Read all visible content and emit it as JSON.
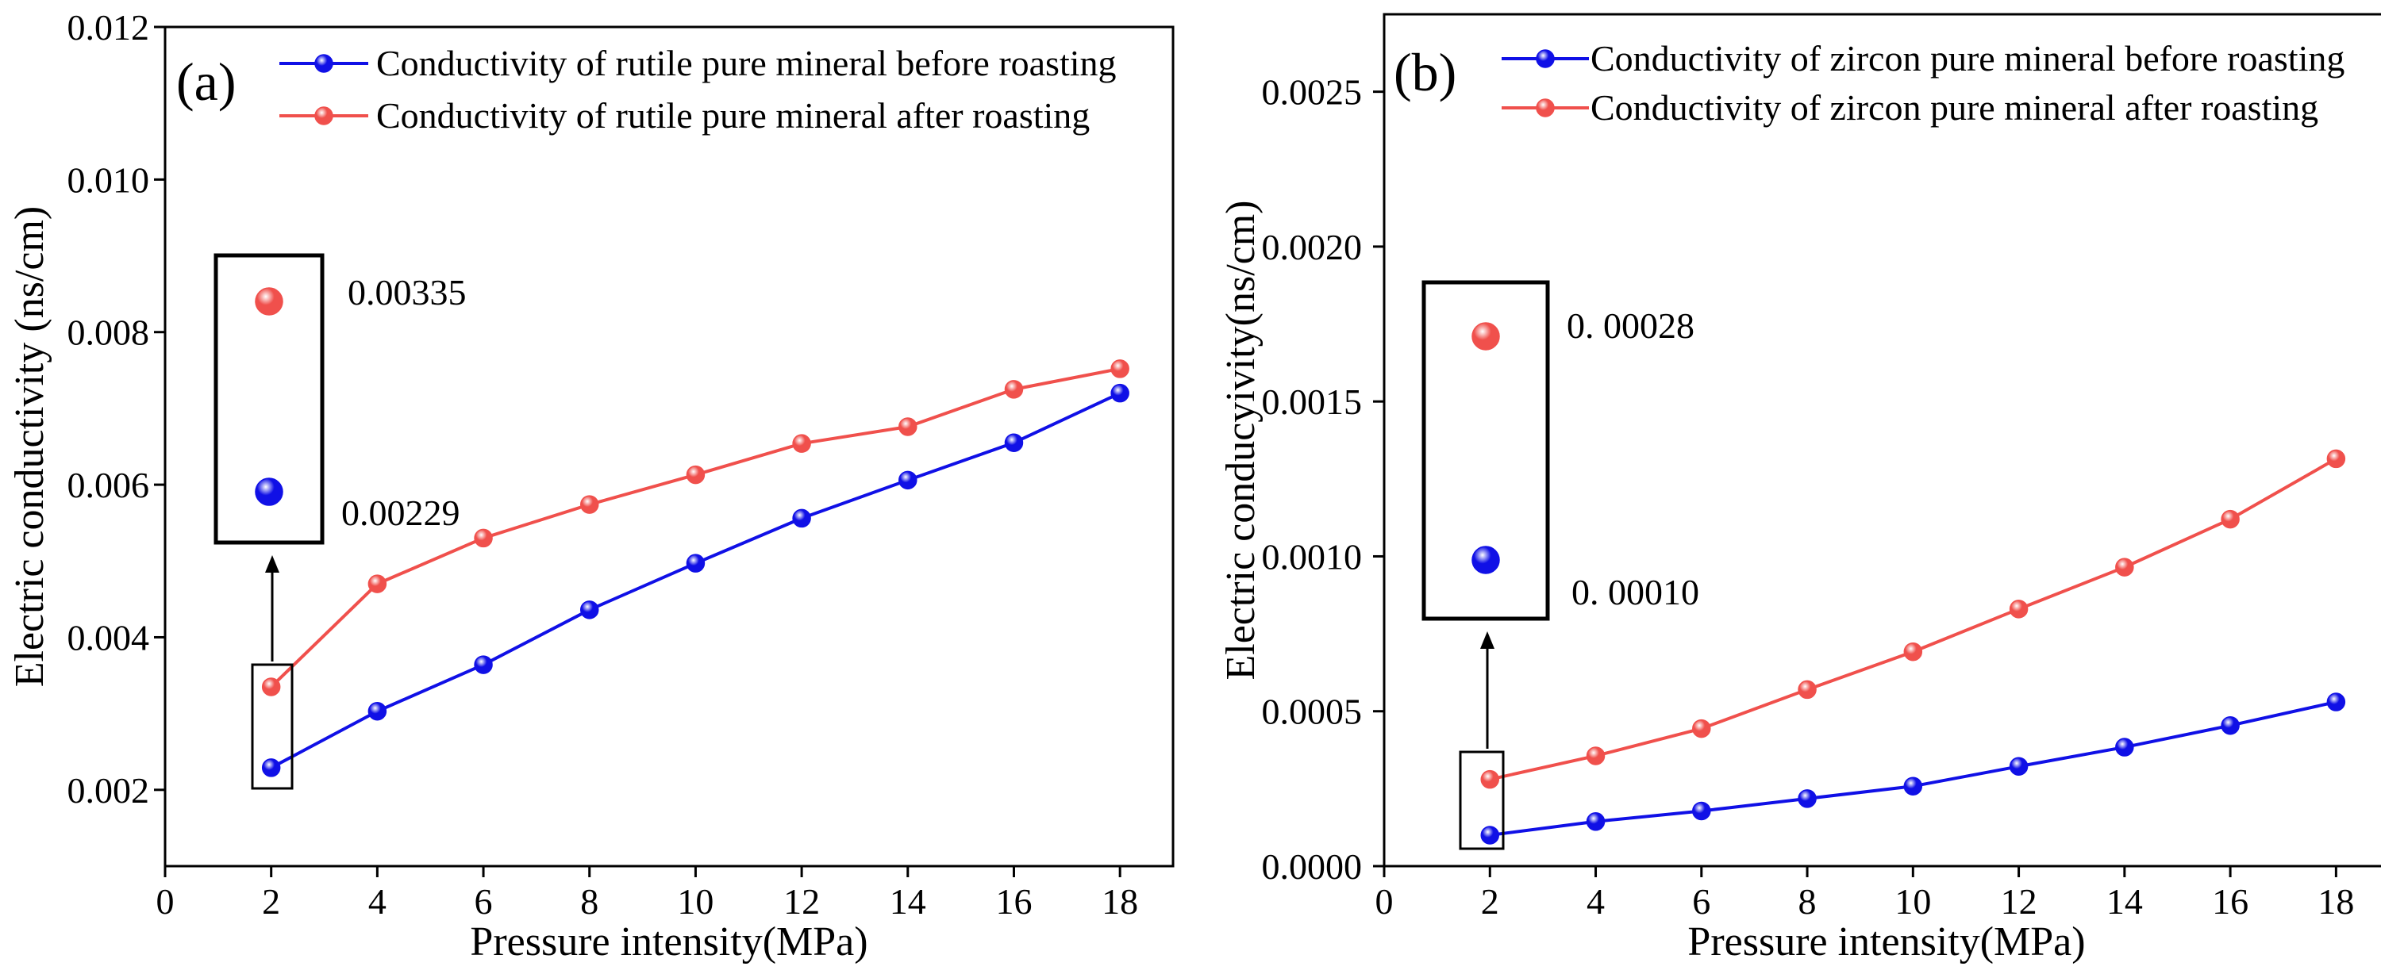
{
  "chart_data": [
    {
      "type": "line",
      "panel_label": "(a)",
      "xlabel": "Pressure intensity(MPa)",
      "ylabel": "Electric conductivity (ns/cm)",
      "xlim": [
        0,
        19
      ],
      "ylim": [
        0.001,
        0.012
      ],
      "xticks": [
        0,
        2,
        4,
        6,
        8,
        10,
        12,
        14,
        16,
        18
      ],
      "xtick_labels": [
        "0",
        "2",
        "4",
        "6",
        "8",
        "10",
        "12",
        "14",
        "16",
        "18"
      ],
      "yticks": [
        0.002,
        0.004,
        0.006,
        0.008,
        0.01,
        0.012
      ],
      "ytick_labels": [
        "0.002",
        "0.004",
        "0.006",
        "0.008",
        "0.010",
        "0.012"
      ],
      "x": [
        2,
        4,
        6,
        8,
        10,
        12,
        14,
        16,
        18
      ],
      "series": [
        {
          "name": "Conductivity of  rutile pure mineral before roasting",
          "color": "#1010e6",
          "values": [
            0.00229,
            0.00303,
            0.00364,
            0.00436,
            0.00497,
            0.00556,
            0.00606,
            0.00655,
            0.0072
          ]
        },
        {
          "name": "Conductivity of  rutile pure mineral after roasting",
          "color": "#f0504c",
          "values": [
            0.00335,
            0.0047,
            0.0053,
            0.00574,
            0.00613,
            0.00654,
            0.00676,
            0.00725,
            0.00752
          ]
        }
      ],
      "legend_position": "top",
      "callouts": {
        "after_value": "0.00335",
        "before_value": "0.00229"
      }
    },
    {
      "type": "line",
      "panel_label": "(b)",
      "xlabel": "Pressure intensity(MPa)",
      "ylabel": "Electric conducyivity(ns/cm)",
      "xlim": [
        0,
        19
      ],
      "ylim": [
        0,
        0.00275
      ],
      "xticks": [
        0,
        2,
        4,
        6,
        8,
        10,
        12,
        14,
        16,
        18
      ],
      "xtick_labels": [
        "0",
        "2",
        "4",
        "6",
        "8",
        "10",
        "12",
        "14",
        "16",
        "18"
      ],
      "yticks": [
        0,
        0.0005,
        0.001,
        0.0015,
        0.002,
        0.0025
      ],
      "ytick_labels": [
        "0.0000",
        "0.0005",
        "0.0010",
        "0.0015",
        "0.0020",
        "0.0025"
      ],
      "x": [
        2,
        4,
        6,
        8,
        10,
        12,
        14,
        16,
        18
      ],
      "series": [
        {
          "name": "Conductivity of zircon pure mineral before roasting",
          "color": "#1010e6",
          "values": [
            0.0001,
            0.000144,
            0.000178,
            0.000218,
            0.000258,
            0.000322,
            0.000384,
            0.000454,
            0.00053
          ]
        },
        {
          "name": "Conductivity of zircon pure mineral after roasting",
          "color": "#f0504c",
          "values": [
            0.00028,
            0.000356,
            0.000444,
            0.00057,
            0.000692,
            0.00083,
            0.000965,
            0.00112,
            0.001315
          ]
        }
      ],
      "legend_position": "top",
      "callouts": {
        "after_value": "0. 00028",
        "before_value": "0. 00010"
      }
    }
  ]
}
